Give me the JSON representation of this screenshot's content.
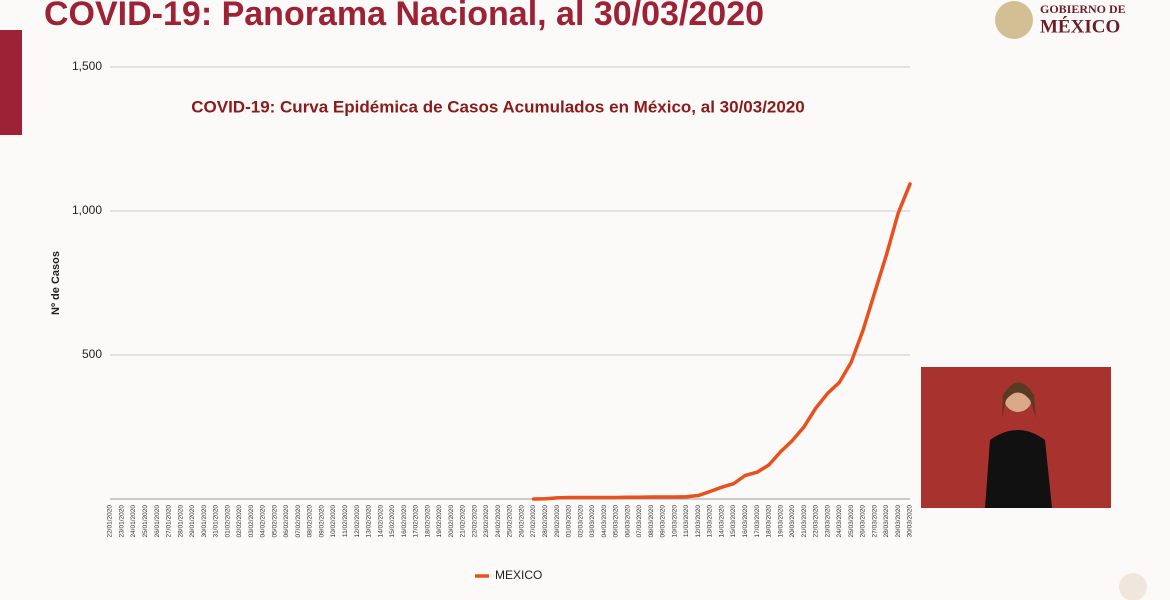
{
  "header": {
    "title": "COVID-19: Panorama Nacional, al 30/03/2020",
    "logo_line1": "GOBIERNO DE",
    "logo_line2": "MÉXICO"
  },
  "chart_data": {
    "type": "line",
    "title": "COVID-19: Curva Epidémica de Casos Acumulados en México, al 30/03/2020",
    "y_label": "Nº de Casos",
    "x": [
      "22/01/2020",
      "23/01/2020",
      "24/01/2020",
      "25/01/2020",
      "26/01/2020",
      "27/01/2020",
      "28/01/2020",
      "29/01/2020",
      "30/01/2020",
      "31/01/2020",
      "01/02/2020",
      "02/02/2020",
      "03/02/2020",
      "04/02/2020",
      "05/02/2020",
      "06/02/2020",
      "07/02/2020",
      "08/02/2020",
      "09/02/2020",
      "10/02/2020",
      "11/02/2020",
      "12/02/2020",
      "13/02/2020",
      "14/02/2020",
      "15/02/2020",
      "16/02/2020",
      "17/02/2020",
      "18/02/2020",
      "19/02/2020",
      "20/02/2020",
      "21/02/2020",
      "22/02/2020",
      "23/02/2020",
      "24/02/2020",
      "25/02/2020",
      "26/02/2020",
      "27/02/2020",
      "28/02/2020",
      "29/02/2020",
      "01/03/2020",
      "02/03/2020",
      "03/03/2020",
      "04/03/2020",
      "05/03/2020",
      "06/03/2020",
      "07/03/2020",
      "08/03/2020",
      "09/03/2020",
      "10/03/2020",
      "11/03/2020",
      "12/03/2020",
      "13/03/2020",
      "14/03/2020",
      "15/03/2020",
      "16/03/2020",
      "17/03/2020",
      "18/03/2020",
      "19/03/2020",
      "20/03/2020",
      "21/03/2020",
      "22/03/2020",
      "23/03/2020",
      "24/03/2020",
      "25/03/2020",
      "26/03/2020",
      "27/03/2020",
      "28/03/2020",
      "29/03/2020",
      "30/03/2020"
    ],
    "series": [
      {
        "name": "MEXICO",
        "color": "#e8501e",
        "values": [
          null,
          null,
          null,
          null,
          null,
          null,
          null,
          null,
          null,
          null,
          null,
          null,
          null,
          null,
          null,
          null,
          null,
          null,
          null,
          null,
          null,
          null,
          null,
          null,
          null,
          null,
          null,
          null,
          null,
          null,
          null,
          null,
          null,
          null,
          null,
          null,
          0,
          1,
          4,
          5,
          5,
          5,
          5,
          5,
          6,
          6,
          7,
          7,
          7,
          8,
          12,
          26,
          41,
          53,
          82,
          93,
          118,
          164,
          203,
          251,
          316,
          367,
          405,
          475,
          585,
          717,
          848,
          993,
          1094
        ]
      }
    ],
    "ylim": [
      0,
      1500
    ],
    "yticks": [
      500,
      {
        "value": 1000,
        "label": "1,000"
      },
      {
        "value": 1500,
        "label": "1,500"
      }
    ],
    "grid": true,
    "legend": "bottom"
  }
}
